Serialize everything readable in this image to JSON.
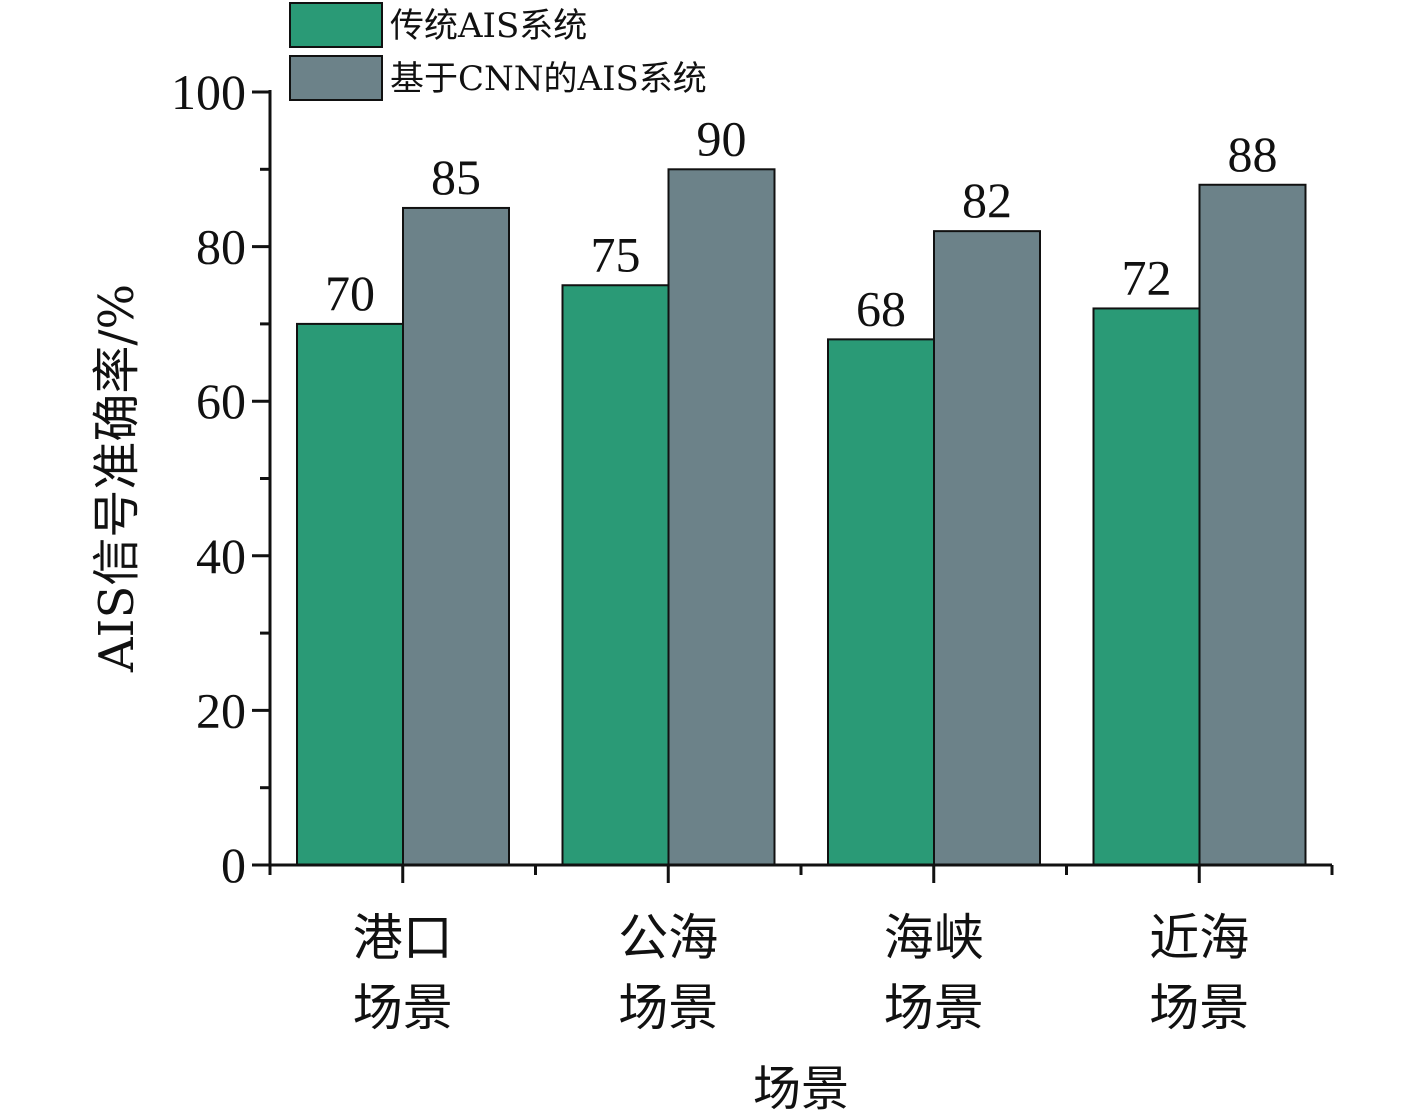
{
  "chart_data": {
    "type": "bar",
    "categories": [
      [
        "港口",
        "场景"
      ],
      [
        "公海",
        "场景"
      ],
      [
        "海峡",
        "场景"
      ],
      [
        "近海",
        "场景"
      ]
    ],
    "series": [
      {
        "name": "传统AIS系统",
        "values": [
          70,
          75,
          68,
          72
        ],
        "color": "#2a9a76"
      },
      {
        "name": "基于CNN的AIS系统",
        "values": [
          85,
          90,
          82,
          88
        ],
        "color": "#6c8289"
      }
    ],
    "xlabel": "场景",
    "ylabel": "AIS信号准确率/%",
    "ylim": [
      0,
      100
    ],
    "yticks": [
      0,
      20,
      40,
      60,
      80,
      100
    ],
    "data_labels": true,
    "legend_position": "top-left",
    "grid": false
  }
}
